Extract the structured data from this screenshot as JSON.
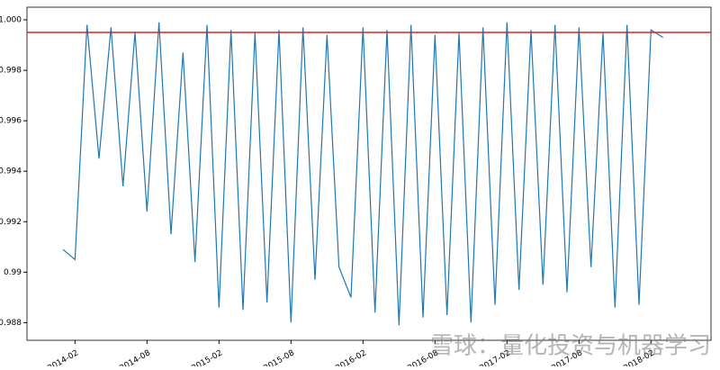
{
  "chart_data": {
    "type": "line",
    "x": [
      "2014-01",
      "2014-02",
      "2014-03",
      "2014-04",
      "2014-05",
      "2014-06",
      "2014-07",
      "2014-08",
      "2014-09",
      "2014-10",
      "2014-11",
      "2014-12",
      "2015-01",
      "2015-02",
      "2015-03",
      "2015-04",
      "2015-05",
      "2015-06",
      "2015-07",
      "2015-08",
      "2015-09",
      "2015-10",
      "2015-11",
      "2015-12",
      "2016-01",
      "2016-02",
      "2016-03",
      "2016-04",
      "2016-05",
      "2016-06",
      "2016-07",
      "2016-08",
      "2016-09",
      "2016-10",
      "2016-11",
      "2016-12",
      "2017-01",
      "2017-02",
      "2017-03",
      "2017-04",
      "2017-05",
      "2017-06",
      "2017-07",
      "2017-08",
      "2017-09",
      "2017-10",
      "2017-11",
      "2017-12",
      "2018-01",
      "2018-02",
      "2018-03"
    ],
    "series": [
      {
        "color": "#1f77b4",
        "values": [
          0.9909,
          0.9905,
          0.9998,
          0.9945,
          0.9997,
          0.9934,
          0.9995,
          0.9924,
          0.9999,
          0.9915,
          0.9987,
          0.9904,
          0.9998,
          0.9886,
          0.9996,
          0.9885,
          0.9995,
          0.9888,
          0.9996,
          0.988,
          0.9997,
          0.9897,
          0.9994,
          0.9902,
          0.989,
          0.9997,
          0.9884,
          0.9996,
          0.9879,
          0.9998,
          0.9882,
          0.9994,
          0.9883,
          0.9995,
          0.988,
          0.9997,
          0.9887,
          0.9999,
          0.9893,
          0.9996,
          0.9895,
          0.9998,
          0.9892,
          0.9997,
          0.9902,
          0.9995,
          0.9886,
          0.9998,
          0.9887,
          0.9996,
          0.9993
        ]
      }
    ],
    "hline": {
      "value": 0.9995,
      "color": "#d62728"
    },
    "xlim": [
      "2013-10",
      "2018-07"
    ],
    "xticks": [
      "2014-02",
      "2014-08",
      "2015-02",
      "2015-08",
      "2016-02",
      "2016-08",
      "2017-02",
      "2017-08",
      "2018-02"
    ],
    "ylim": [
      0.9873,
      1.0005
    ],
    "yticks": [
      0.988,
      0.99,
      0.992,
      0.994,
      0.996,
      0.998,
      {
        "value": 1,
        "label": "1.000"
      }
    ],
    "watermark": "雪球：量化投资与机器学习"
  }
}
